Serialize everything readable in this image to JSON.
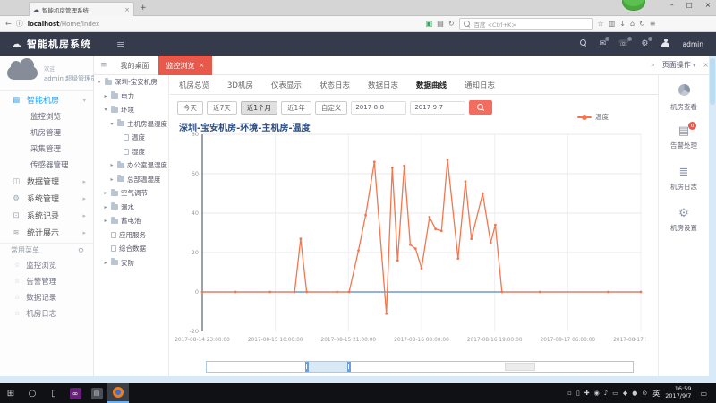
{
  "icons": {
    "cloud-icon": "☁",
    "close-icon": "×",
    "new-tab-icon": "+",
    "minimize-icon": "–",
    "maximize-icon": "□",
    "back-icon": "←",
    "info-icon": "ⓘ",
    "shield-icon": "▣",
    "reader-icon": "▤",
    "reload-icon": "↻",
    "star-icon": "☆",
    "library-icon": "▥",
    "download-icon": "↓",
    "home-icon": "⌂",
    "sync-icon": "↻",
    "menu-icon": "≡",
    "hamburger-icon": "≡",
    "mail-icon": "✉",
    "phone-icon": "☏",
    "gear-icon": "⚙",
    "grid-icon": "▤",
    "chart-icon": "◫",
    "monitor-icon": "⊡",
    "stats-icon": "≋",
    "chev-down": "▾",
    "chev-right": "▸",
    "collapse-icon": "»",
    "star-small": "☆",
    "list-icon": "▤",
    "layers-icon": "≣",
    "start-icon": "⊞",
    "cortana-icon": "○",
    "taskview-icon": "▯",
    "vs-icon": "∞",
    "explorer-icon": "▤",
    "tray-generic": "▫",
    "speech-icon": "▭"
  },
  "browser": {
    "tab_title": "智能机房管理系统",
    "url_host": "localhost",
    "url_path": "/Home/Index",
    "search_placeholder": "百度 <Ctrl+K>"
  },
  "app_header": {
    "title": "智能机房系统",
    "username": "admin"
  },
  "sidebar": {
    "greeting": "欢迎",
    "user_line": "admin 超级管理员",
    "menu": [
      {
        "label": "智能机房",
        "icon": "grid-icon",
        "active": true,
        "expanded": true,
        "children": [
          "监控浏览",
          "机房管理",
          "采集管理",
          "传感器管理"
        ]
      },
      {
        "label": "数据管理",
        "icon": "chart-icon"
      },
      {
        "label": "系统管理",
        "icon": "gear-icon"
      },
      {
        "label": "系统记录",
        "icon": "monitor-icon"
      },
      {
        "label": "统计展示",
        "icon": "stats-icon"
      }
    ],
    "common_section": {
      "title": "常用菜单",
      "items": [
        "监控浏览",
        "告警管理",
        "数据记录",
        "机房日志"
      ]
    }
  },
  "workspace_tabs": [
    {
      "label": "我的桌面",
      "active": false,
      "closable": false
    },
    {
      "label": "监控浏览",
      "active": true,
      "closable": true
    }
  ],
  "page_ops": {
    "label": "页面操作"
  },
  "tree": [
    {
      "label": "深圳-宝安机房",
      "depth": 0,
      "arrow": "down",
      "icon": "folder"
    },
    {
      "label": "电力",
      "depth": 1,
      "arrow": "right",
      "icon": "folder"
    },
    {
      "label": "环境",
      "depth": 1,
      "arrow": "down",
      "icon": "folder"
    },
    {
      "label": "主机房温湿度",
      "depth": 2,
      "arrow": "down",
      "icon": "folder"
    },
    {
      "label": "温度",
      "depth": 3,
      "arrow": "none",
      "icon": "file"
    },
    {
      "label": "湿度",
      "depth": 3,
      "arrow": "none",
      "icon": "file"
    },
    {
      "label": "办公室温湿度",
      "depth": 2,
      "arrow": "right",
      "icon": "folder"
    },
    {
      "label": "总部温湿度",
      "depth": 2,
      "arrow": "right",
      "icon": "folder"
    },
    {
      "label": "空气调节",
      "depth": 1,
      "arrow": "right",
      "icon": "folder"
    },
    {
      "label": "漏水",
      "depth": 1,
      "arrow": "right",
      "icon": "folder"
    },
    {
      "label": "蓄电池",
      "depth": 1,
      "arrow": "right",
      "icon": "folder"
    },
    {
      "label": "应用服务",
      "depth": 1,
      "arrow": "none",
      "icon": "file"
    },
    {
      "label": "综合数据",
      "depth": 1,
      "arrow": "none",
      "icon": "file"
    },
    {
      "label": "安防",
      "depth": 1,
      "arrow": "right",
      "icon": "folder"
    }
  ],
  "content": {
    "tabs": [
      "机房总览",
      "3D机房",
      "仪表显示",
      "状态日志",
      "数据日志",
      "数据曲线",
      "通知日志"
    ],
    "active_tab": "数据曲线",
    "filter_buttons": [
      "今天",
      "近7天",
      "近1个月",
      "近1年",
      "自定义"
    ],
    "active_filter": "近1个月",
    "date_start": "2017-8-8",
    "date_end": "2017-9-7"
  },
  "chart_data": {
    "type": "line",
    "title": "深圳-宝安机房-环境-主机房-温度",
    "legend": [
      "温度"
    ],
    "line_color": "#f4764f",
    "zero_line_color": "#5585c2",
    "ylim": [
      -20,
      80
    ],
    "yticks": [
      -20,
      0,
      20,
      40,
      60,
      80
    ],
    "x_range_hours": [
      0,
      66
    ],
    "x_labels": [
      "2017-08-14 23:00:00",
      "2017-08-15 10:00:00",
      "2017-08-15 21:00:00",
      "2017-08-16 08:00:00",
      "2017-08-16 19:00:00",
      "2017-08-17 06:00:00",
      "2017-08-17 17:00:00"
    ],
    "series": [
      {
        "name": "温度",
        "points": [
          [
            0,
            0
          ],
          [
            5,
            0
          ],
          [
            10.2,
            0
          ],
          [
            13.9,
            0
          ],
          [
            14.8,
            27
          ],
          [
            15.7,
            0
          ],
          [
            20.3,
            0
          ],
          [
            22.1,
            0
          ],
          [
            23.5,
            21
          ],
          [
            24.6,
            39
          ],
          [
            25.9,
            66
          ],
          [
            27.7,
            -11
          ],
          [
            28.6,
            63
          ],
          [
            29.4,
            16
          ],
          [
            30.4,
            64
          ],
          [
            31.3,
            24
          ],
          [
            32.1,
            22
          ],
          [
            33,
            12
          ],
          [
            34.2,
            38
          ],
          [
            35.1,
            32
          ],
          [
            36,
            31
          ],
          [
            36.9,
            67
          ],
          [
            38.5,
            17
          ],
          [
            39.6,
            56
          ],
          [
            40.5,
            27
          ],
          [
            42.2,
            50
          ],
          [
            43.4,
            25
          ],
          [
            44.1,
            34
          ],
          [
            45.1,
            0
          ],
          [
            50.8,
            0
          ],
          [
            61.1,
            0
          ],
          [
            66,
            0
          ]
        ]
      }
    ]
  },
  "right_panel": [
    {
      "label": "机房查看",
      "icon": "pie-icon"
    },
    {
      "label": "告警处理",
      "icon": "list-icon",
      "badge": "0"
    },
    {
      "label": "机房日志",
      "icon": "layers-icon"
    },
    {
      "label": "机房设置",
      "icon": "gear-icon"
    }
  ],
  "taskbar": {
    "apps": [
      {
        "name": "start",
        "icon": "start-icon"
      },
      {
        "name": "cortana",
        "icon": "cortana-icon"
      },
      {
        "name": "task-view",
        "icon": "taskview-icon"
      },
      {
        "name": "visual-studio",
        "icon": "vs-icon"
      },
      {
        "name": "explorer",
        "icon": "explorer-icon"
      },
      {
        "name": "firefox",
        "icon": "firefox-icon"
      }
    ],
    "tray_icons": [
      "▫",
      "▯",
      "✚",
      "◉",
      "♪",
      "▭",
      "◆",
      "●",
      "⊙"
    ],
    "ime": "英",
    "time": "16:59",
    "date": "2017/9/7"
  }
}
